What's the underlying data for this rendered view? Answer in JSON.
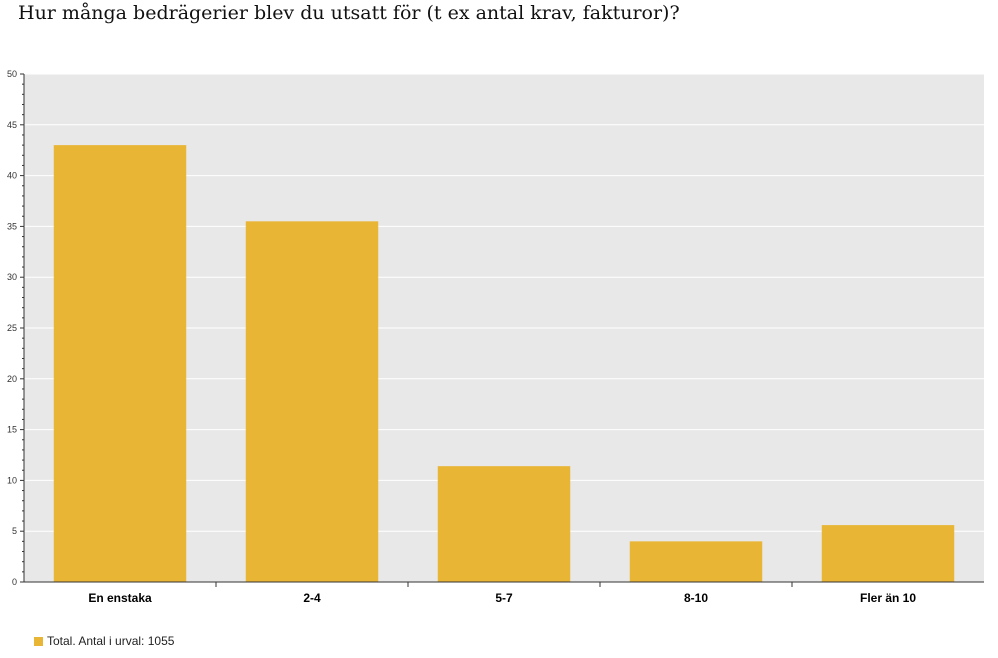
{
  "title": "Hur många bedrägerier blev du utsatt för (t ex antal krav, fakturor)?",
  "chart_data": {
    "type": "bar",
    "categories": [
      "En enstaka",
      "2-4",
      "5-7",
      "8-10",
      "Fler än 10"
    ],
    "series": [
      {
        "name": "Total. Antal i urval: 1055",
        "values": [
          43,
          35.5,
          11.4,
          4,
          5.6
        ]
      }
    ],
    "ylim": [
      0,
      50
    ],
    "yticks": [
      0,
      5,
      10,
      15,
      20,
      25,
      30,
      35,
      40,
      45,
      50
    ],
    "grid": true,
    "legend_position": "bottom-left",
    "colors": {
      "bar": "#e8b535",
      "plot_bg": "#e8e8e8",
      "grid": "#ffffff",
      "axis": "#333333"
    }
  }
}
